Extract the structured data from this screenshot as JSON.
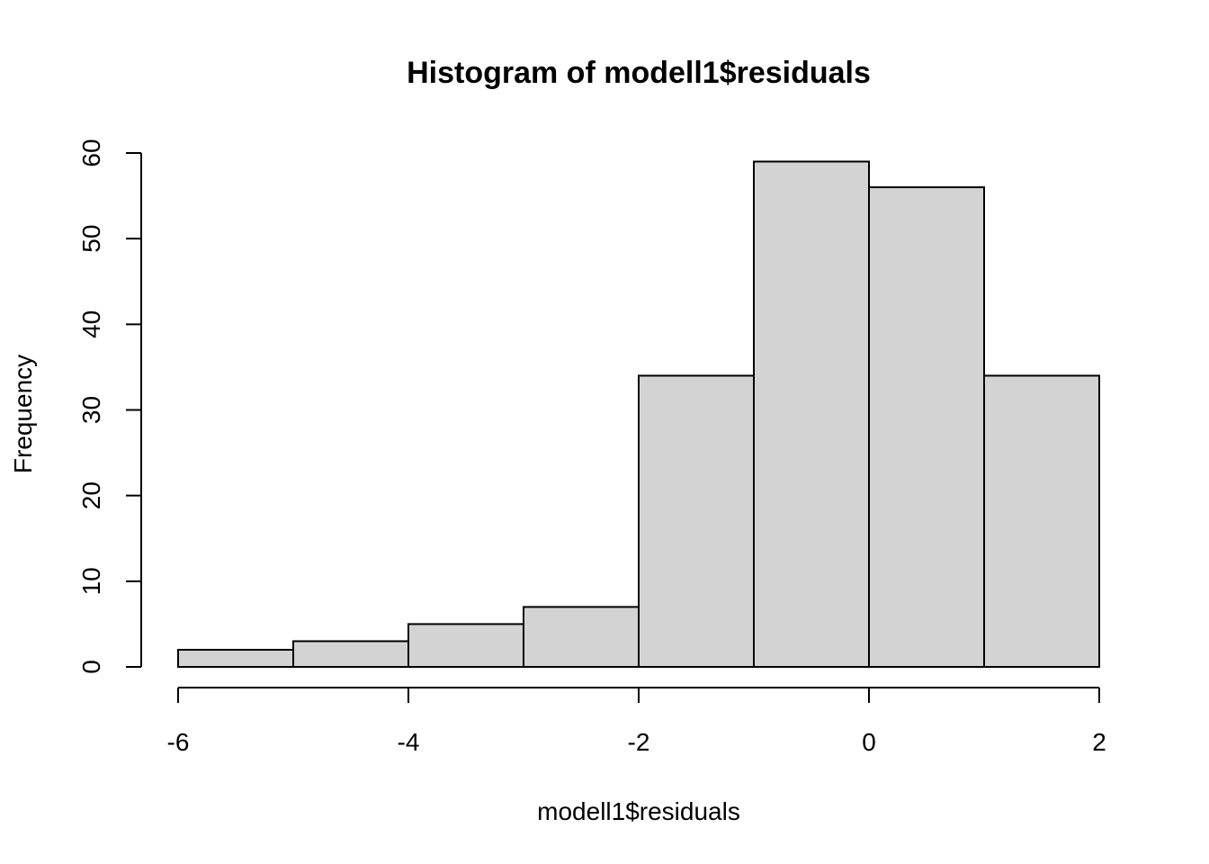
{
  "chart_data": {
    "type": "bar",
    "title": "Histogram of modell1$residuals",
    "xlabel": "modell1$residuals",
    "ylabel": "Frequency",
    "bins": [
      {
        "from": -6,
        "to": -5,
        "count": 2
      },
      {
        "from": -5,
        "to": -4,
        "count": 3
      },
      {
        "from": -4,
        "to": -3,
        "count": 5
      },
      {
        "from": -3,
        "to": -2,
        "count": 7
      },
      {
        "from": -2,
        "to": -1,
        "count": 34
      },
      {
        "from": -1,
        "to": 0,
        "count": 59
      },
      {
        "from": 0,
        "to": 1,
        "count": 56
      },
      {
        "from": 1,
        "to": 2,
        "count": 34
      }
    ],
    "xlim": [
      -6,
      2
    ],
    "ylim": [
      0,
      60
    ],
    "x_ticks": [
      -6,
      -4,
      -2,
      0,
      2
    ],
    "y_ticks": [
      0,
      10,
      20,
      30,
      40,
      50,
      60
    ],
    "grid": false,
    "bar_color": "#d3d3d3",
    "edge_color": "#000000"
  }
}
